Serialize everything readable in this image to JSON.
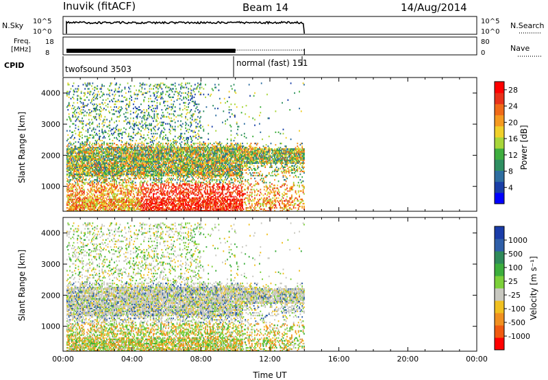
{
  "header": {
    "station": "Inuvik (fitACF)",
    "beam": "Beam 14",
    "date": "14/Aug/2014"
  },
  "top_panels": {
    "nsky_label": "N.Sky",
    "freq_label_line1": "Freq.",
    "freq_label_line2": "[MHz]",
    "cpid_label": "CPID",
    "nsearch_label": "N.Search",
    "nave_label": "Nave",
    "nsky_ticks": [
      "10^5",
      "10^0"
    ],
    "nsearch_ticks": [
      "10^5",
      "10^0"
    ],
    "freq_ticks": [
      "18",
      "8"
    ],
    "nave_ticks": [
      "80",
      "0"
    ]
  },
  "cpid": {
    "mode1": "twofsound 3503",
    "mode2": "normal (fast) 151"
  },
  "colors": {
    "power_scale": [
      "#0000ff",
      "#1a3fa8",
      "#2e6ea0",
      "#2f8f62",
      "#3fae3f",
      "#a8d63a",
      "#f0d02a",
      "#f59a20",
      "#f06a18",
      "#e8321a",
      "#ff0000"
    ],
    "velocity_scale": [
      "#1a3ca8",
      "#2f5fa8",
      "#2f8a5a",
      "#3cae3c",
      "#7cd03a",
      "#c8c8c0",
      "#f0c020",
      "#f09020",
      "#f05a10",
      "#ff0000"
    ]
  },
  "chart_data": [
    {
      "type": "heatmap",
      "panel": "power",
      "xlabel": "",
      "ylabel": "Slant Range [km]",
      "yticks": [
        1000,
        2000,
        3000,
        4000
      ],
      "ylim": [
        200,
        4500
      ],
      "xlim_hours": [
        0,
        24
      ],
      "colorbar_label": "Power [dB]",
      "colorbar_ticks": [
        4,
        8,
        12,
        16,
        20,
        24,
        28
      ],
      "colorbar_range": [
        0,
        30
      ],
      "data_extent_hours": [
        0.2,
        14.0
      ]
    },
    {
      "type": "heatmap",
      "panel": "velocity",
      "xlabel": "Time UT",
      "ylabel": "Slant Range [km]",
      "yticks": [
        1000,
        2000,
        3000,
        4000
      ],
      "ylim": [
        200,
        4500
      ],
      "xlim_hours": [
        0,
        24
      ],
      "xticks": [
        "00:00",
        "04:00",
        "08:00",
        "12:00",
        "16:00",
        "20:00",
        "00:00"
      ],
      "colorbar_label": "Velocity [m s⁻¹]",
      "colorbar_ticks": [
        "1000",
        "500",
        "100",
        "25",
        "-25",
        "-100",
        "-500",
        "-1000"
      ],
      "data_extent_hours": [
        0.2,
        14.0
      ]
    }
  ]
}
